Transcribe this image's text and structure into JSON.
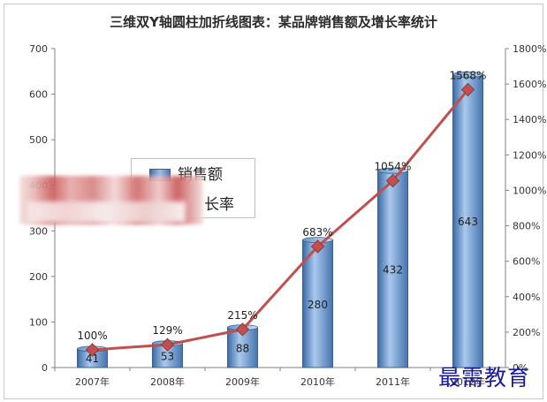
{
  "chart_data": {
    "type": "bar",
    "title": "三维双Y轴圆柱加折线图表：某品牌销售额及增长率统计",
    "categories": [
      "2007年",
      "2008年",
      "2009年",
      "2010年",
      "2011年",
      "2012年"
    ],
    "series": [
      {
        "name": "销售额",
        "type": "bar",
        "axis": "left",
        "values": [
          41,
          53,
          88,
          280,
          432,
          643
        ],
        "color": "#4f81bd"
      },
      {
        "name": "增长率",
        "type": "line",
        "axis": "right",
        "values": [
          100,
          129,
          215,
          683,
          1054,
          1568
        ],
        "color": "#c0504d"
      }
    ],
    "data_labels_left": [
      "41",
      "53",
      "88",
      "280",
      "432",
      "643"
    ],
    "data_labels_right": [
      "100%",
      "129%",
      "215%",
      "683%",
      "1054%",
      "1568%"
    ],
    "y_left": {
      "ylim": [
        0,
        700
      ],
      "ticks": [
        "0",
        "100",
        "200",
        "300",
        "400",
        "500",
        "600",
        "700"
      ]
    },
    "y_right": {
      "ylim": [
        0,
        1800
      ],
      "ticks": [
        "0%",
        "200%",
        "400%",
        "600%",
        "800%",
        "1000%",
        "1200%",
        "1400%",
        "1600%",
        "1800%"
      ]
    },
    "grid": false,
    "legend_position": "center-left"
  },
  "legend": {
    "bar_label": "销售额",
    "line_label_visible": "长率"
  },
  "watermark": "最需教育"
}
